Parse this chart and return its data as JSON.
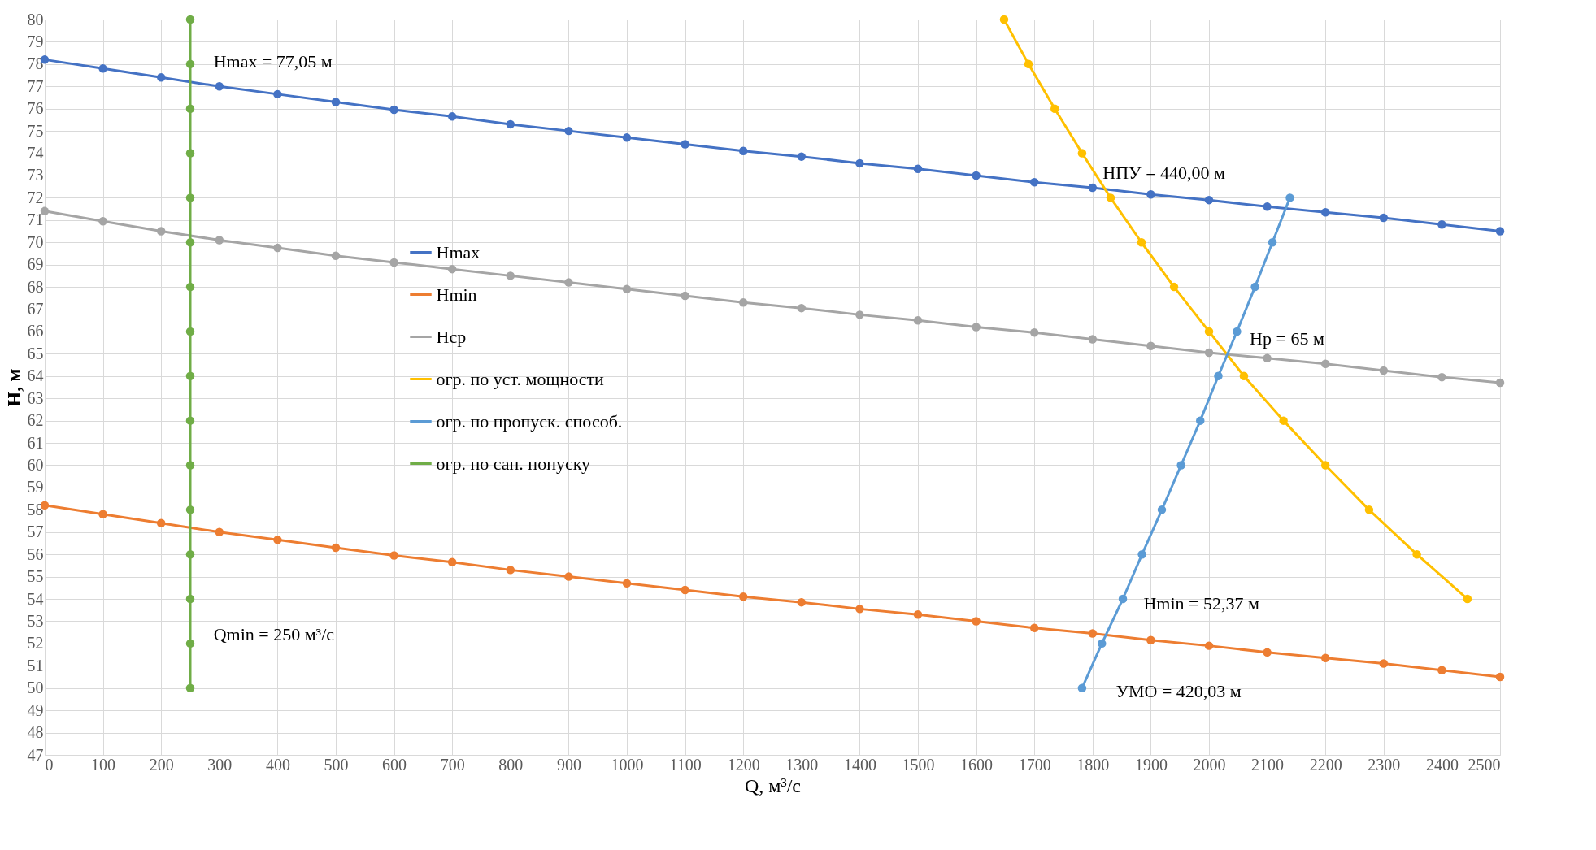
{
  "chart_data": {
    "type": "line",
    "xlabel": "Q, м³/с",
    "ylabel": "H, м",
    "x": [
      0,
      100,
      200,
      300,
      400,
      500,
      600,
      700,
      800,
      900,
      1000,
      1100,
      1200,
      1300,
      1400,
      1500,
      1600,
      1700,
      1800,
      1900,
      2000,
      2100,
      2200,
      2300,
      2400,
      2500
    ],
    "series": [
      {
        "name": "Hmax",
        "color": "#4472c4",
        "values": [
          78.2,
          77.8,
          77.4,
          77.0,
          76.65,
          76.3,
          75.95,
          75.65,
          75.3,
          75.0,
          74.7,
          74.4,
          74.1,
          73.85,
          73.55,
          73.3,
          73.0,
          72.7,
          72.45,
          72.15,
          71.9,
          71.6,
          71.35,
          71.1,
          70.8,
          70.5
        ]
      },
      {
        "name": "Hmin",
        "color": "#ed7d31",
        "values": [
          58.2,
          57.8,
          57.4,
          57.0,
          56.65,
          56.3,
          55.95,
          55.65,
          55.3,
          55.0,
          54.7,
          54.4,
          54.1,
          53.85,
          53.55,
          53.3,
          53.0,
          52.7,
          52.45,
          52.15,
          51.9,
          51.6,
          51.35,
          51.1,
          50.8,
          50.5
        ]
      },
      {
        "name": "Hср",
        "color": "#a5a5a5",
        "values": [
          71.4,
          70.95,
          70.5,
          70.1,
          69.75,
          69.4,
          69.1,
          68.8,
          68.5,
          68.2,
          67.9,
          67.6,
          67.3,
          67.05,
          66.75,
          66.5,
          66.2,
          65.95,
          65.65,
          65.35,
          65.05,
          64.8,
          64.55,
          64.25,
          63.95,
          63.7
        ]
      },
      {
        "name": "огр. по уст. мощности",
        "color": "#ffc000",
        "x": [
          1648,
          1690,
          1735,
          1782,
          1831,
          1884,
          1940,
          2000,
          2060,
          2128,
          2200,
          2275,
          2357,
          2444
        ],
        "values": [
          80,
          78,
          76,
          74,
          72,
          70,
          68,
          66,
          64,
          62,
          60,
          58,
          56,
          54
        ]
      },
      {
        "name": "огр. по пропуск. способ.",
        "color": "#5b9bd5",
        "x": [
          1782,
          1816,
          1852,
          1885,
          1919,
          1952,
          1985,
          2016,
          2048,
          2079,
          2109,
          2139
        ],
        "values": [
          50,
          52,
          54,
          56,
          58,
          60,
          62,
          64,
          66,
          68,
          70,
          72
        ]
      },
      {
        "name": "огр. по сан. попуску",
        "color": "#70ad47",
        "x": [
          250,
          250,
          250,
          250,
          250,
          250,
          250,
          250,
          250,
          250,
          250,
          250,
          250,
          250,
          250,
          250
        ],
        "values": [
          50,
          52,
          54,
          56,
          58,
          60,
          62,
          64,
          66,
          68,
          70,
          72,
          74,
          76,
          78,
          80
        ]
      }
    ],
    "xlim": [
      0,
      2500
    ],
    "xticks": [
      0,
      100,
      200,
      300,
      400,
      500,
      600,
      700,
      800,
      900,
      1000,
      1100,
      1200,
      1300,
      1400,
      1500,
      1600,
      1700,
      1800,
      1900,
      2000,
      2100,
      2200,
      2300,
      2400,
      2500
    ],
    "ylim": [
      47,
      80
    ],
    "yticks": [
      47,
      48,
      49,
      50,
      51,
      52,
      53,
      54,
      55,
      56,
      57,
      58,
      59,
      60,
      61,
      62,
      63,
      64,
      65,
      66,
      67,
      68,
      69,
      70,
      71,
      72,
      73,
      74,
      75,
      76,
      77,
      78,
      79,
      80
    ],
    "grid": true,
    "legend": "left",
    "marker": "circle",
    "line_style": "solid",
    "annotations": [
      "Hmax = 77,05 м",
      "НПУ = 440,00 м",
      "Hp = 65 м",
      "Hmin = 52,37 м",
      "УМО = 420,03 м",
      "Qmin = 250 м³/с"
    ]
  }
}
